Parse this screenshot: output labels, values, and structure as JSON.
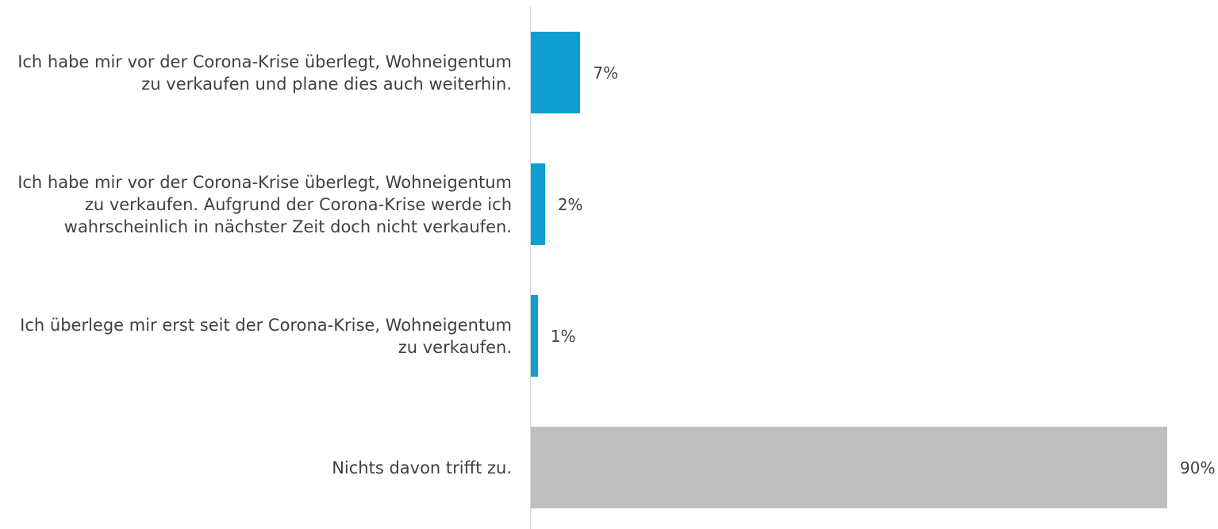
{
  "chart_data": {
    "type": "bar",
    "orientation": "horizontal",
    "categories": [
      "Ich habe mir vor der Corona-Krise überlegt, Wohneigentum zu verkaufen und plane dies auch weiterhin.",
      "Ich habe mir vor der Corona-Krise überlegt, Wohneigentum zu verkaufen. Aufgrund der Corona-Krise werde ich wahrscheinlich in nächster Zeit doch nicht verkaufen.",
      "Ich überlege mir erst seit der Corona-Krise, Wohneigentum zu verkaufen.",
      "Nichts davon trifft zu."
    ],
    "values": [
      7,
      2,
      1,
      90
    ],
    "value_labels": [
      "7%",
      "2%",
      "1%",
      "90%"
    ],
    "colors": [
      "#0e9fd0",
      "#0e9fd0",
      "#0e9fd0",
      "#bfbfbf"
    ],
    "xlim": [
      0,
      90
    ]
  }
}
